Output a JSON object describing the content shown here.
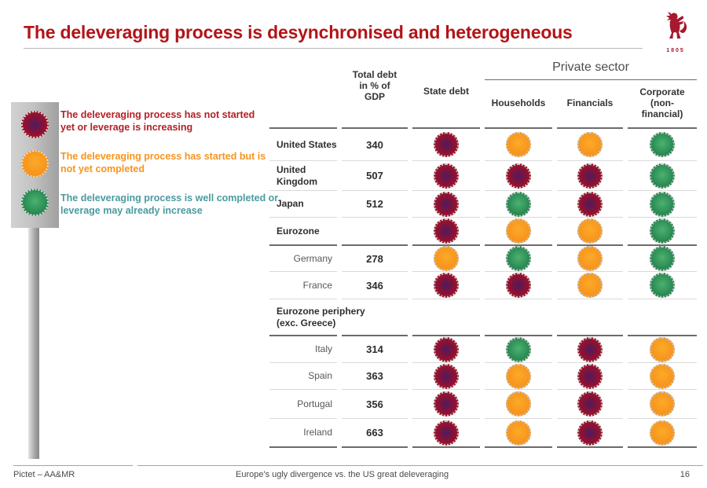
{
  "slide": {
    "title": "The deleveraging process is desynchronised and heterogeneous",
    "title_color": "#b21418",
    "logo_year": "1805",
    "footer_left": "Pictet – AA&MR",
    "footer_center": "Europe's ugly divergence vs. the US great deleveraging",
    "page_number": "16"
  },
  "legend": {
    "items": [
      {
        "status": "red",
        "color": "#b41f24",
        "text": "The deleveraging process has not started yet or leverage is increasing"
      },
      {
        "status": "orange",
        "color": "#f7941e",
        "text": "The deleveraging process has started but is not yet completed"
      },
      {
        "status": "green",
        "color": "#4a9b9e",
        "text": "The deleveraging process is well completed or leverage may already increase"
      }
    ]
  },
  "status_colors": {
    "red": "#a91123",
    "orange": "#f7941e",
    "green": "#2a8a53"
  },
  "table": {
    "columns": {
      "total_debt": "Total debt in % of GDP",
      "state_debt": "State debt",
      "private_sector": "Private sector",
      "households": "Households",
      "financials": "Financials",
      "corporate": "Corporate (non-financial)"
    },
    "rows": [
      {
        "label": "United States",
        "group": true,
        "total_debt": "340",
        "rule_above": "dark",
        "circles": {
          "state": "red",
          "households": "orange",
          "financials": "orange",
          "corporate": "green"
        }
      },
      {
        "label": "United Kingdom",
        "group": true,
        "total_debt": "507",
        "rule_above": "light",
        "circles": {
          "state": "red",
          "households": "red",
          "financials": "red",
          "corporate": "green"
        }
      },
      {
        "label": "Japan",
        "group": true,
        "total_debt": "512",
        "rule_above": "light",
        "circles": {
          "state": "red",
          "households": "green",
          "financials": "red",
          "corporate": "green"
        }
      },
      {
        "label": "Eurozone",
        "group": true,
        "total_debt": "",
        "rule_above": "light",
        "circles": {
          "state": "red",
          "households": "orange",
          "financials": "orange",
          "corporate": "green"
        }
      },
      {
        "label": "Germany",
        "group": false,
        "total_debt": "278",
        "rule_above": "dark",
        "circles": {
          "state": "orange",
          "households": "green",
          "financials": "orange",
          "corporate": "green"
        }
      },
      {
        "label": "France",
        "group": false,
        "total_debt": "346",
        "rule_above": "light",
        "circles": {
          "state": "red",
          "households": "red",
          "financials": "orange",
          "corporate": "green"
        }
      },
      {
        "label": "Eurozone periphery",
        "label2": "(exc. Greece)",
        "group": true,
        "total_debt": "",
        "rule_above": "light",
        "circles": null
      },
      {
        "label": "Italy",
        "group": false,
        "total_debt": "314",
        "rule_above": "dark",
        "circles": {
          "state": "red",
          "households": "green",
          "financials": "red",
          "corporate": "orange"
        }
      },
      {
        "label": "Spain",
        "group": false,
        "total_debt": "363",
        "rule_above": "light",
        "circles": {
          "state": "red",
          "households": "orange",
          "financials": "red",
          "corporate": "orange"
        }
      },
      {
        "label": "Portugal",
        "group": false,
        "total_debt": "356",
        "rule_above": "light",
        "circles": {
          "state": "red",
          "households": "orange",
          "financials": "red",
          "corporate": "orange"
        }
      },
      {
        "label": "Ireland",
        "group": false,
        "total_debt": "663",
        "rule_above": "light",
        "circles": {
          "state": "red",
          "households": "orange",
          "financials": "red",
          "corporate": "orange"
        }
      }
    ]
  }
}
